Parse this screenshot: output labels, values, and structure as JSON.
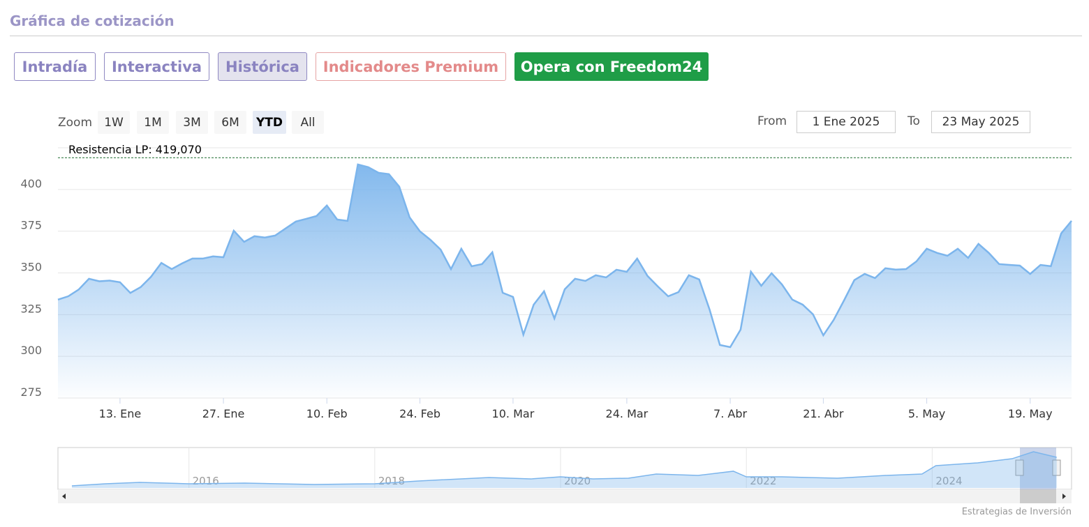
{
  "header": {
    "title": "Gráfica de cotización"
  },
  "tabs": [
    "Intradía",
    "Interactiva",
    "Histórica",
    "Indicadores Premium",
    "Opera con Freedom24"
  ],
  "zoom": {
    "label": "Zoom",
    "buttons": [
      "1W",
      "1M",
      "3M",
      "6M",
      "YTD",
      "All"
    ],
    "selected": 4
  },
  "range": {
    "from_label": "From",
    "from": "1 Ene 2025",
    "to_label": "To",
    "to": "23 May 2025"
  },
  "chart_data": {
    "type": "area",
    "color": "#7cb5ec",
    "annotation": {
      "label": "Resistencia LP: 419,070",
      "value": 419.07
    },
    "ylim": [
      275,
      425
    ],
    "yticks": [
      275,
      300,
      325,
      350,
      375,
      400
    ],
    "grid": true,
    "categories": [
      null,
      null,
      null,
      null,
      null,
      null,
      "13. Ene",
      null,
      null,
      null,
      null,
      null,
      null,
      null,
      null,
      null,
      "27. Ene",
      null,
      null,
      null,
      null,
      null,
      null,
      null,
      null,
      null,
      "10. Feb",
      null,
      null,
      null,
      null,
      null,
      null,
      null,
      null,
      "24. Feb",
      null,
      null,
      null,
      null,
      null,
      null,
      null,
      null,
      "10. Mar",
      null,
      null,
      null,
      null,
      null,
      null,
      null,
      null,
      null,
      null,
      "24. Mar",
      null,
      null,
      null,
      null,
      null,
      null,
      null,
      null,
      null,
      "7. Abr",
      null,
      null,
      null,
      null,
      null,
      null,
      null,
      null,
      "21. Abr",
      null,
      null,
      null,
      null,
      null,
      null,
      null,
      null,
      null,
      "5. May",
      null,
      null,
      null,
      null,
      null,
      null,
      null,
      null,
      null,
      "19. May",
      null,
      null,
      null,
      null
    ],
    "values": [
      334,
      336,
      340,
      346.5,
      345,
      345.4,
      344.4,
      338,
      341.5,
      347.7,
      356,
      352.3,
      355.7,
      358.6,
      358.6,
      359.9,
      359.4,
      375.3,
      368.6,
      372,
      371.2,
      372.4,
      376.6,
      380.8,
      382.4,
      384.1,
      390.4,
      382,
      381.2,
      415,
      413.4,
      410,
      409.2,
      401.7,
      383.3,
      374.9,
      369.9,
      364,
      352.3,
      364.5,
      354,
      355.3,
      362.4,
      338.1,
      335.6,
      313,
      331,
      339,
      322.7,
      340.2,
      346.5,
      345.2,
      348.6,
      347.3,
      351.9,
      350.7,
      358.6,
      348.2,
      341.9,
      336,
      338.5,
      348.6,
      346.1,
      328.1,
      306.8,
      305.5,
      316,
      350.7,
      342.3,
      349.8,
      343.1,
      334,
      331,
      325.2,
      312.6,
      321.8,
      333.5,
      345.7,
      349.4,
      346.9,
      352.8,
      352,
      352.3,
      356.9,
      364.5,
      362,
      360.3,
      364.5,
      359,
      367.4,
      362,
      355.3,
      354.8,
      354.4,
      349.4,
      354.8,
      354,
      373.7,
      381.2
    ]
  },
  "navigator": {
    "type": "area",
    "xlim": [
      2014.59,
      2025.5
    ],
    "xticks": [
      2016,
      2018,
      2020,
      2022,
      2024
    ],
    "ylim": [
      0,
      500
    ],
    "x": [
      2014.74,
      2015.1,
      2015.47,
      2016,
      2016.6,
      2017.35,
      2018,
      2018.47,
      2019.23,
      2019.68,
      2020,
      2020.35,
      2020.73,
      2021.03,
      2021.48,
      2021.86,
      2022,
      2022.38,
      2022.98,
      2023.5,
      2023.89,
      2024.04,
      2024.49,
      2024.86,
      2025.09,
      2025.34
    ],
    "values": [
      26,
      53,
      70,
      53,
      61,
      44,
      53,
      88,
      132,
      114,
      140,
      114,
      123,
      175,
      158,
      211,
      140,
      140,
      123,
      158,
      175,
      281,
      316,
      368,
      456,
      386
    ]
  },
  "credit": "Estrategias de Inversión"
}
